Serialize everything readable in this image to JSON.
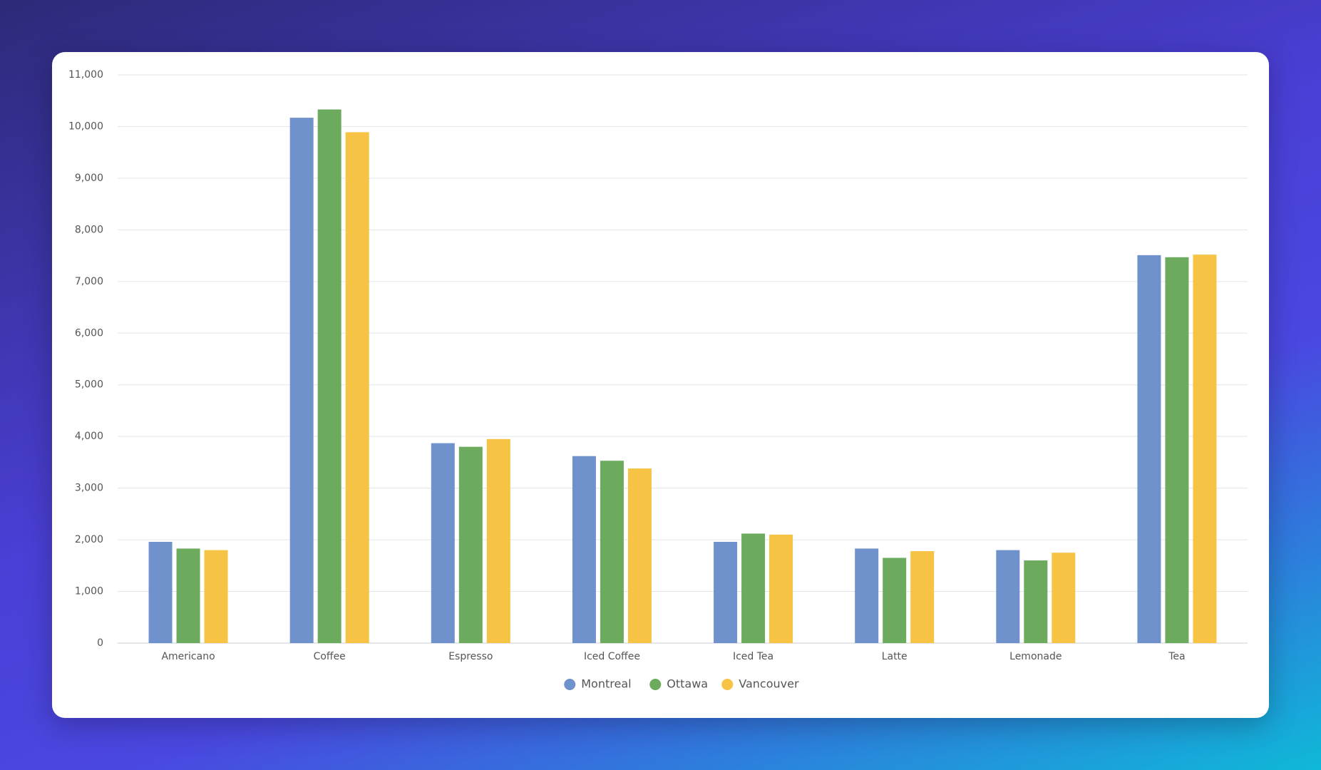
{
  "chart_data": {
    "type": "bar",
    "categories": [
      "Americano",
      "Coffee",
      "Espresso",
      "Iced Coffee",
      "Iced Tea",
      "Latte",
      "Lemonade",
      "Tea"
    ],
    "series": [
      {
        "name": "Montreal",
        "color": "#7092cc",
        "values": [
          1960,
          10170,
          3870,
          3620,
          1960,
          1830,
          1800,
          7510
        ]
      },
      {
        "name": "Ottawa",
        "color": "#6cab5d",
        "values": [
          1830,
          10330,
          3800,
          3530,
          2120,
          1650,
          1600,
          7470
        ]
      },
      {
        "name": "Vancouver",
        "color": "#f6c344",
        "values": [
          1800,
          9890,
          3950,
          3380,
          2100,
          1780,
          1750,
          7520
        ]
      }
    ],
    "ylim": [
      0,
      11000
    ],
    "yticks": [
      0,
      {
        "value": 1000,
        "label": "1,000"
      },
      {
        "value": 2000,
        "label": "2,000"
      },
      {
        "value": 3000,
        "label": "3,000"
      },
      {
        "value": 4000,
        "label": "4,000"
      },
      {
        "value": 5000,
        "label": "5,000"
      },
      {
        "value": 6000,
        "label": "6,000"
      },
      {
        "value": 7000,
        "label": "7,000"
      },
      {
        "value": 8000,
        "label": "8,000"
      },
      {
        "value": 9000,
        "label": "9,000"
      },
      {
        "value": 10000,
        "label": "10,000"
      },
      {
        "value": 11000,
        "label": "11,000"
      }
    ],
    "grid": true,
    "legend": "bottom"
  }
}
